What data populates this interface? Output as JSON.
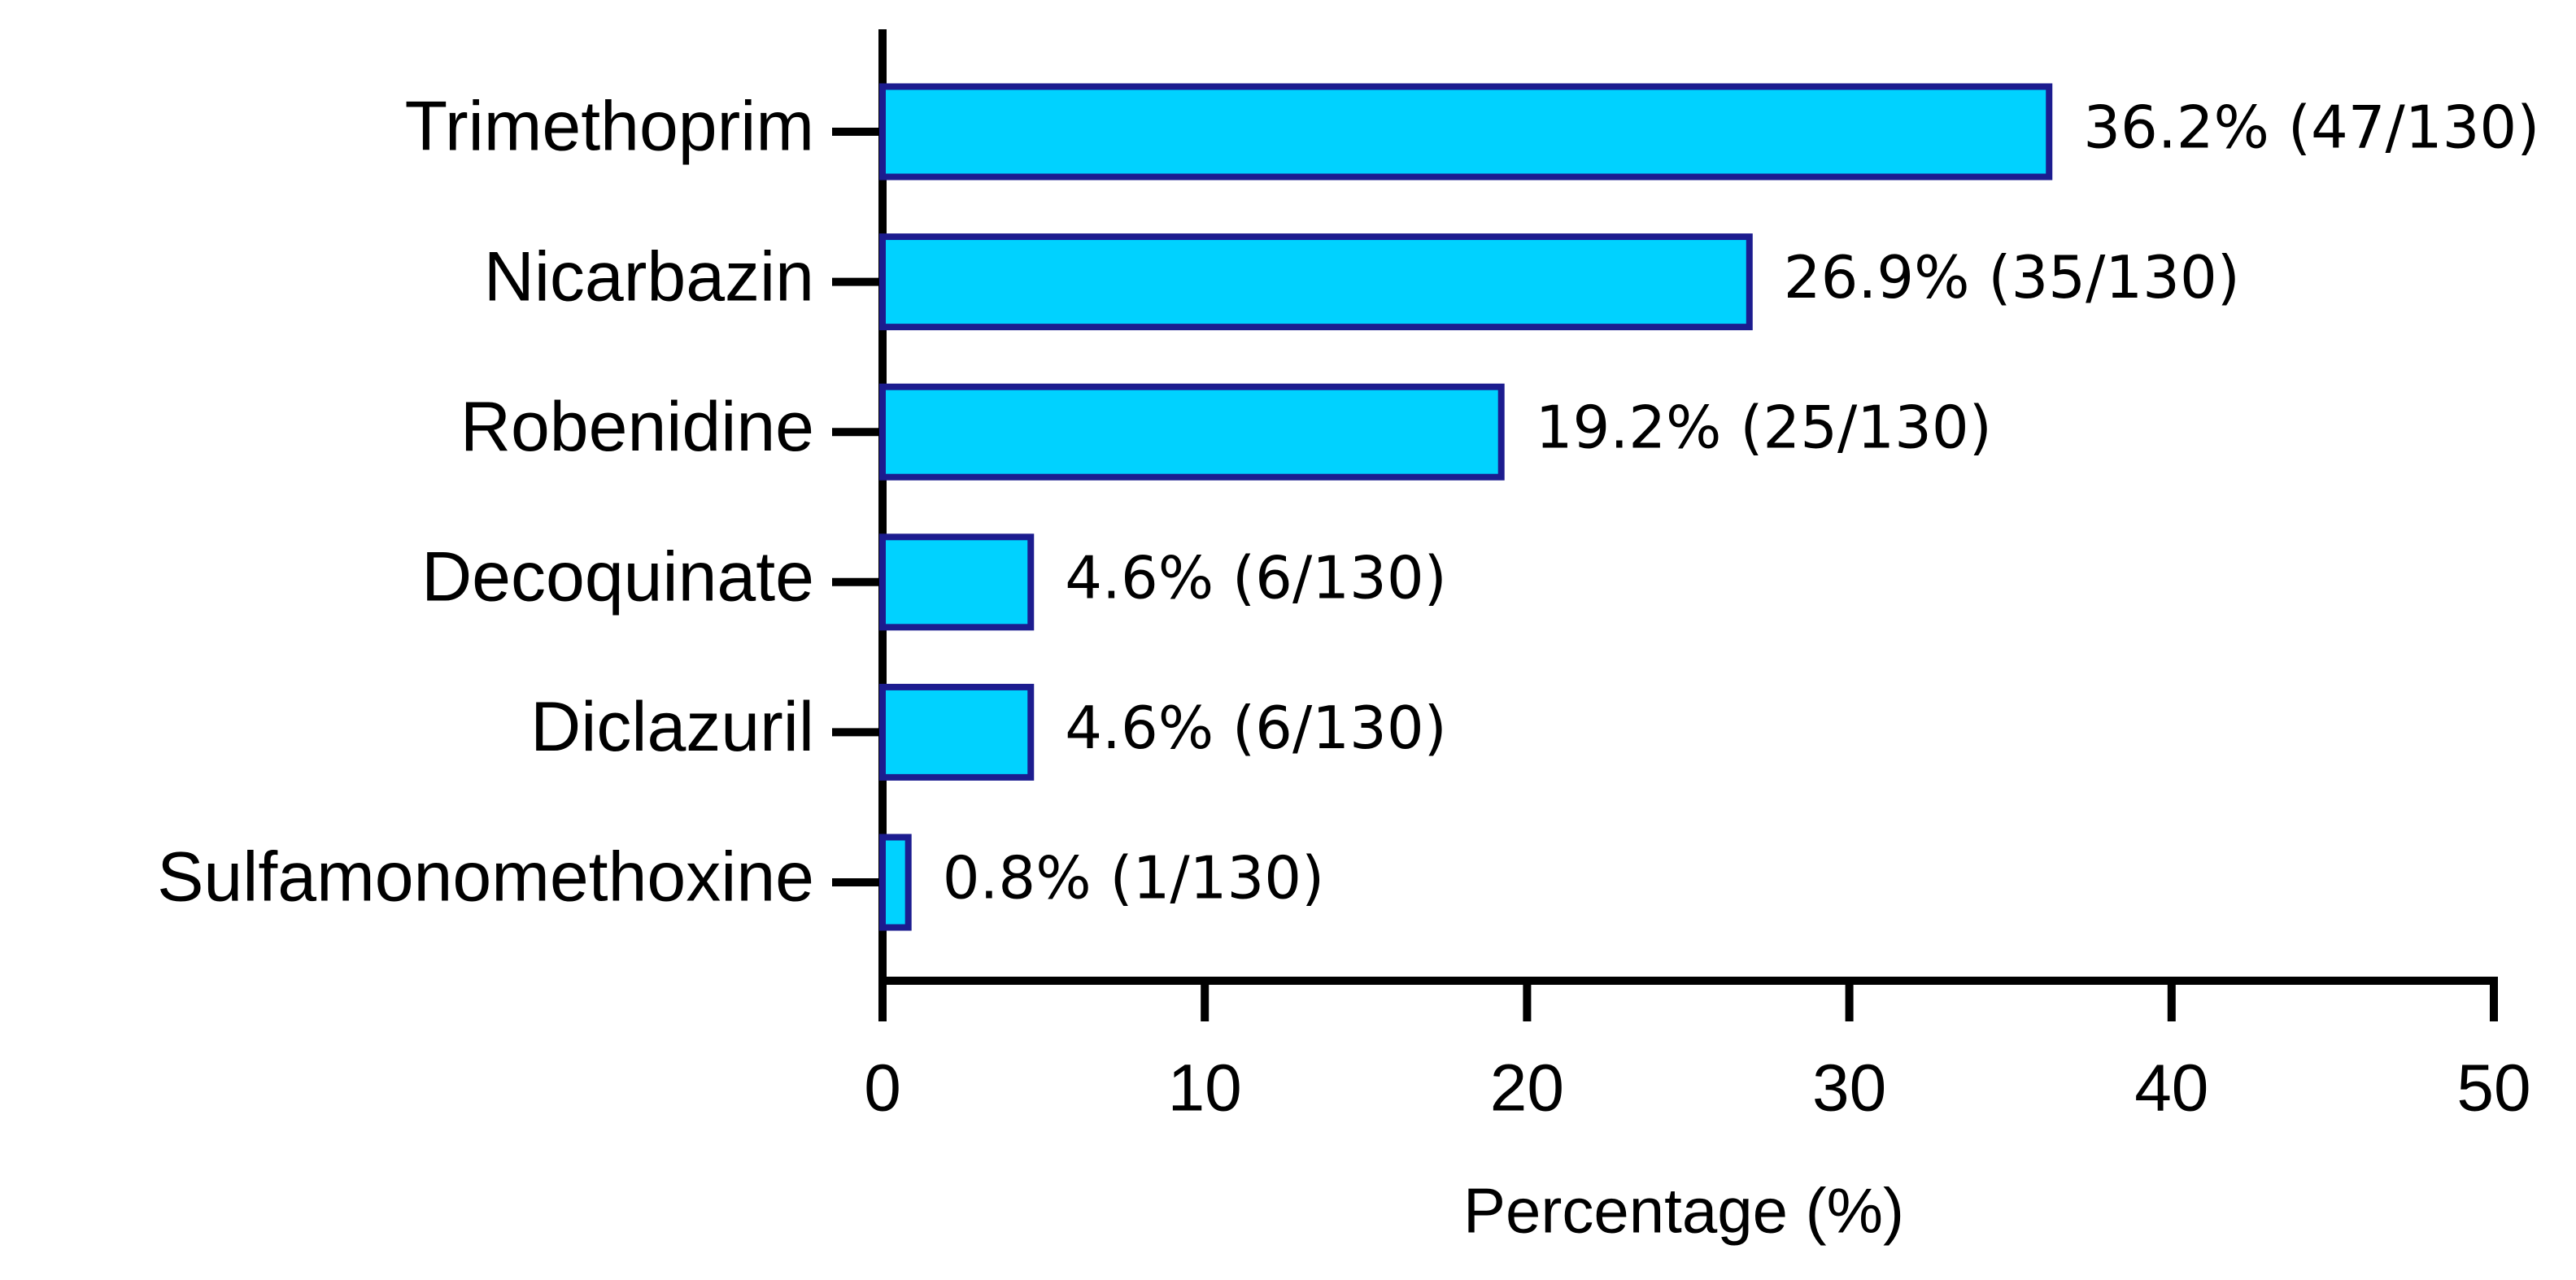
{
  "chart_data": {
    "type": "hbar",
    "categories": [
      "Trimethoprim",
      "Nicarbazin",
      "Robenidine",
      "Decoquinate",
      "Diclazuril",
      "Sulfamonomethoxine"
    ],
    "values": [
      36.2,
      26.9,
      19.2,
      4.6,
      4.6,
      0.8
    ],
    "value_labels": [
      "36.2% (47/130)",
      "26.9% (35/130)",
      "19.2% (25/130)",
      "4.6% (6/130)",
      "4.6% (6/130)",
      "0.8% (1/130)"
    ],
    "color": "#00d2ff",
    "edge_color": "#1c1c8f",
    "x_label": "Percentage (%)",
    "xlim": [
      0,
      50
    ],
    "xticks": [
      0,
      10,
      20,
      30,
      40,
      50
    ],
    "grid": false
  }
}
